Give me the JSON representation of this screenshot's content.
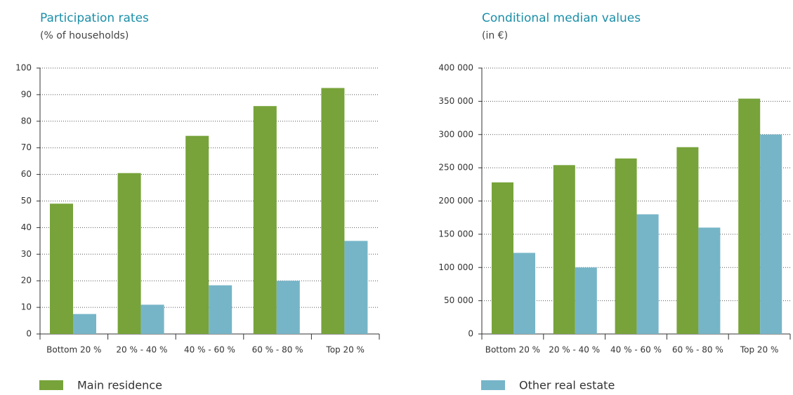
{
  "chart_data": [
    {
      "type": "bar",
      "title": "Participation rates",
      "subtitle": "(% of households)",
      "categories": [
        "Bottom 20 %",
        "20 % - 40 %",
        "40 % - 60 %",
        "60 % - 80 %",
        "Top 20 %"
      ],
      "series": [
        {
          "color": "#77a33a",
          "values": [
            49,
            60.5,
            74.5,
            85.7,
            92.5
          ]
        },
        {
          "color": "#76b5c8",
          "values": [
            7.5,
            11,
            18.3,
            20,
            35
          ]
        }
      ],
      "ylim": [
        0,
        100
      ],
      "yticks": [
        0,
        10,
        20,
        30,
        40,
        50,
        60,
        70,
        80,
        90,
        100
      ],
      "grid": true
    },
    {
      "type": "bar",
      "title": "Conditional median values",
      "subtitle": "(in €)",
      "categories": [
        "Bottom 20 %",
        "20 % - 40 %",
        "40 % - 60 %",
        "60 % - 80 %",
        "Top 20 %"
      ],
      "series": [
        {
          "color": "#77a33a",
          "values": [
            228000,
            254000,
            264000,
            281000,
            354000
          ]
        },
        {
          "color": "#76b5c8",
          "values": [
            122000,
            100000,
            180000,
            160000,
            300000
          ]
        }
      ],
      "ylim": [
        0,
        400000
      ],
      "yticks": [
        0,
        {
          "value": 50000,
          "label": "50 000"
        },
        {
          "value": 100000,
          "label": "100 000"
        },
        {
          "value": 150000,
          "label": "150 000"
        },
        {
          "value": 200000,
          "label": "200 000"
        },
        {
          "value": 250000,
          "label": "250 000"
        },
        {
          "value": 300000,
          "label": "300 000"
        },
        {
          "value": 350000,
          "label": "350 000"
        },
        {
          "value": 400000,
          "label": "400 000"
        }
      ],
      "grid": true
    }
  ],
  "legend": [
    {
      "name": "Main residence",
      "color": "#77a33a"
    },
    {
      "name": "Other real estate",
      "color": "#76b5c8"
    }
  ]
}
